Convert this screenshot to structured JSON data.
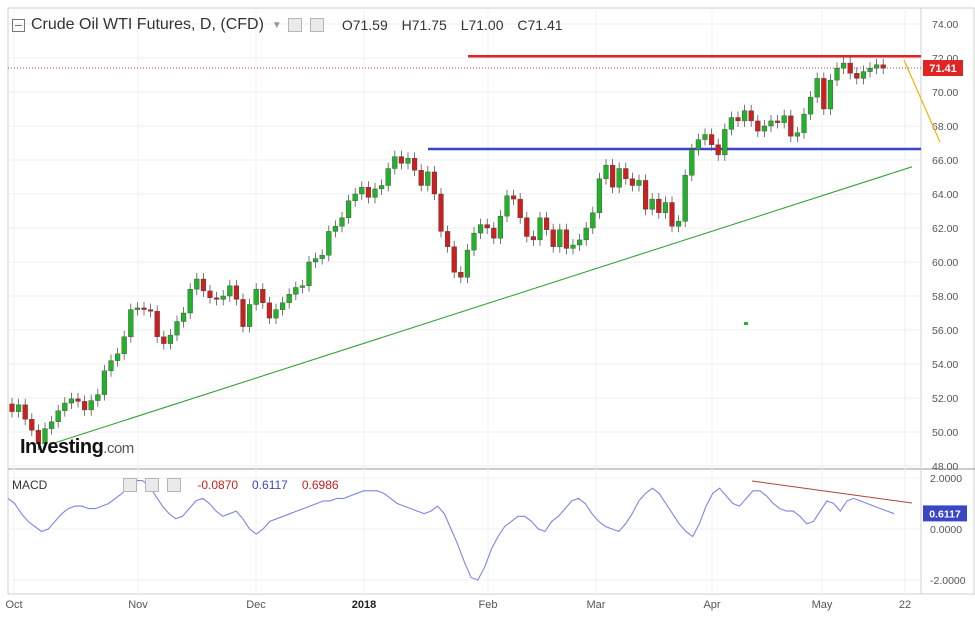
{
  "header": {
    "title": "Crude Oil WTI Futures, D, (CFD)",
    "open": "O71.59",
    "high": "H71.75",
    "low": "L71.00",
    "close": "C71.41"
  },
  "price_badge": "71.41",
  "macd_badge": "0.6117",
  "macd_header": {
    "label": "MACD",
    "v1": "-0.0870",
    "v2": "0.6117",
    "v3": "0.6986"
  },
  "logo": {
    "main": "Investing",
    "suffix": ".com"
  },
  "colors": {
    "up": "#22b22a",
    "down": "#cc1f1f",
    "resistance": "#e02424",
    "support": "#3b46c6",
    "trendline": "#35a33c",
    "macd_line": "#7c86e6",
    "macd_trend": "#b04040",
    "arrow": "#f0b400"
  },
  "chart_data": [
    {
      "type": "candlestick",
      "price_axis": {
        "ticks": [
          "74.00",
          "72.00",
          "70.00",
          "68.00",
          "66.00",
          "64.00",
          "62.00",
          "60.00",
          "58.00",
          "56.00",
          "54.00",
          "52.00",
          "50.00",
          "48.00"
        ],
        "ylim": [
          48,
          74
        ]
      },
      "time_axis": {
        "labels": [
          "Oct",
          "Nov",
          "Dec",
          "2018",
          "Feb",
          "Mar",
          "Apr",
          "May",
          "22"
        ]
      },
      "last_price": 71.41,
      "lines": {
        "resistance": 72.1,
        "support": 66.65
      },
      "candles": [
        [
          0,
          51.65,
          51.2
        ],
        [
          1,
          51.2,
          51.6
        ],
        [
          2,
          51.6,
          50.75
        ],
        [
          3,
          50.75,
          50.1
        ],
        [
          4,
          50.1,
          49.3
        ],
        [
          5,
          49.3,
          50.2
        ],
        [
          6,
          50.2,
          50.6
        ],
        [
          7,
          50.6,
          51.25
        ],
        [
          8,
          51.25,
          51.7
        ],
        [
          9,
          51.7,
          51.95
        ],
        [
          10,
          51.95,
          51.8
        ],
        [
          11,
          51.8,
          51.3
        ],
        [
          12,
          51.3,
          51.85
        ],
        [
          13,
          51.85,
          52.2
        ],
        [
          14,
          52.2,
          53.6
        ],
        [
          15,
          53.6,
          54.2
        ],
        [
          16,
          54.2,
          54.6
        ],
        [
          17,
          54.6,
          55.6
        ],
        [
          18,
          55.6,
          57.2
        ],
        [
          19,
          57.2,
          57.3
        ],
        [
          20,
          57.3,
          57.2
        ],
        [
          21,
          57.2,
          57.1
        ],
        [
          22,
          57.1,
          55.6
        ],
        [
          23,
          55.6,
          55.2
        ],
        [
          24,
          55.2,
          55.7
        ],
        [
          25,
          55.7,
          56.5
        ],
        [
          26,
          56.5,
          57.0
        ],
        [
          27,
          57.0,
          58.4
        ],
        [
          28,
          58.4,
          59.0
        ],
        [
          29,
          59.0,
          58.3
        ],
        [
          30,
          58.3,
          57.9
        ],
        [
          31,
          57.9,
          57.8
        ],
        [
          32,
          57.8,
          58.0
        ],
        [
          33,
          58.0,
          58.6
        ],
        [
          34,
          58.6,
          57.8
        ],
        [
          35,
          57.8,
          56.2
        ],
        [
          36,
          56.2,
          57.5
        ],
        [
          37,
          57.5,
          58.4
        ],
        [
          38,
          58.4,
          57.6
        ],
        [
          39,
          57.6,
          56.7
        ],
        [
          40,
          56.7,
          57.2
        ],
        [
          41,
          57.2,
          57.6
        ],
        [
          42,
          57.6,
          58.1
        ],
        [
          43,
          58.1,
          58.5
        ],
        [
          44,
          58.5,
          58.6
        ],
        [
          45,
          58.6,
          60.0
        ],
        [
          46,
          60.0,
          60.2
        ],
        [
          47,
          60.2,
          60.4
        ],
        [
          48,
          60.4,
          61.8
        ],
        [
          49,
          61.8,
          62.1
        ],
        [
          50,
          62.1,
          62.6
        ],
        [
          51,
          62.6,
          63.6
        ],
        [
          52,
          63.6,
          64.0
        ],
        [
          53,
          64.0,
          64.4
        ],
        [
          54,
          64.4,
          63.8
        ],
        [
          55,
          63.8,
          64.3
        ],
        [
          56,
          64.3,
          64.5
        ],
        [
          57,
          64.5,
          65.5
        ],
        [
          58,
          65.5,
          66.2
        ],
        [
          59,
          66.2,
          65.8
        ],
        [
          60,
          65.8,
          66.1
        ],
        [
          61,
          66.1,
          65.4
        ],
        [
          62,
          65.4,
          64.5
        ],
        [
          63,
          64.5,
          65.3
        ],
        [
          64,
          65.3,
          64.0
        ],
        [
          65,
          64.0,
          61.8
        ],
        [
          66,
          61.8,
          60.9
        ],
        [
          67,
          60.9,
          59.4
        ],
        [
          68,
          59.4,
          59.1
        ],
        [
          69,
          59.1,
          60.7
        ],
        [
          70,
          60.7,
          61.7
        ],
        [
          71,
          61.7,
          62.2
        ],
        [
          72,
          62.2,
          62.0
        ],
        [
          73,
          62.0,
          61.4
        ],
        [
          74,
          61.4,
          62.7
        ],
        [
          75,
          62.7,
          63.9
        ],
        [
          76,
          63.9,
          63.7
        ],
        [
          77,
          63.7,
          62.6
        ],
        [
          78,
          62.6,
          61.5
        ],
        [
          79,
          61.5,
          61.3
        ],
        [
          80,
          61.3,
          62.6
        ],
        [
          81,
          62.6,
          61.9
        ],
        [
          82,
          61.9,
          60.9
        ],
        [
          83,
          60.9,
          61.9
        ],
        [
          84,
          61.9,
          60.8
        ],
        [
          85,
          60.8,
          61.0
        ],
        [
          86,
          61.0,
          61.3
        ],
        [
          87,
          61.3,
          62.0
        ],
        [
          88,
          62.0,
          62.9
        ],
        [
          89,
          62.9,
          64.9
        ],
        [
          90,
          64.9,
          65.7
        ],
        [
          91,
          65.7,
          64.4
        ],
        [
          92,
          64.4,
          65.5
        ],
        [
          93,
          65.5,
          64.9
        ],
        [
          94,
          64.9,
          64.5
        ],
        [
          95,
          64.5,
          64.8
        ],
        [
          96,
          64.8,
          63.1
        ],
        [
          97,
          63.1,
          63.7
        ],
        [
          98,
          63.7,
          62.9
        ],
        [
          99,
          62.9,
          63.5
        ],
        [
          100,
          63.5,
          62.1
        ],
        [
          101,
          62.1,
          62.4
        ],
        [
          102,
          62.4,
          65.1
        ],
        [
          103,
          65.1,
          66.6
        ],
        [
          104,
          66.6,
          67.2
        ],
        [
          105,
          67.2,
          67.5
        ],
        [
          106,
          67.5,
          66.9
        ],
        [
          107,
          66.9,
          66.3
        ],
        [
          108,
          66.3,
          67.8
        ],
        [
          109,
          67.8,
          68.5
        ],
        [
          110,
          68.5,
          68.3
        ],
        [
          111,
          68.3,
          68.9
        ],
        [
          112,
          68.9,
          68.3
        ],
        [
          113,
          68.3,
          67.7
        ],
        [
          114,
          67.7,
          68.0
        ],
        [
          115,
          68.0,
          68.3
        ],
        [
          116,
          68.3,
          68.2
        ],
        [
          117,
          68.2,
          68.6
        ],
        [
          118,
          68.6,
          67.4
        ],
        [
          119,
          67.4,
          67.6
        ],
        [
          120,
          67.6,
          68.7
        ],
        [
          121,
          68.7,
          69.7
        ],
        [
          122,
          69.7,
          70.8
        ],
        [
          123,
          70.8,
          69.0
        ],
        [
          124,
          69.0,
          70.7
        ],
        [
          125,
          70.7,
          71.4
        ],
        [
          126,
          71.4,
          71.7
        ],
        [
          127,
          71.7,
          71.1
        ],
        [
          128,
          71.1,
          70.8
        ],
        [
          129,
          70.8,
          71.2
        ],
        [
          130,
          71.2,
          71.4
        ],
        [
          131,
          71.4,
          71.6
        ],
        [
          132,
          71.6,
          71.4
        ]
      ]
    },
    {
      "type": "line",
      "name": "MACD",
      "y_axis": {
        "ticks": [
          "2.0000",
          "0.0000",
          "-2.0000"
        ],
        "ylim": [
          -2.4,
          2.2
        ]
      },
      "values": [
        1.2,
        1.0,
        0.6,
        0.3,
        0.1,
        -0.1,
        0.0,
        0.3,
        0.6,
        0.8,
        0.9,
        0.9,
        0.8,
        0.8,
        0.9,
        1.0,
        1.2,
        1.4,
        1.7,
        1.9,
        1.9,
        1.7,
        1.3,
        0.9,
        0.6,
        0.4,
        0.5,
        0.8,
        1.1,
        1.2,
        1.0,
        0.7,
        0.5,
        0.6,
        0.7,
        0.4,
        0.0,
        -0.2,
        0.0,
        0.3,
        0.4,
        0.5,
        0.6,
        0.7,
        0.8,
        0.9,
        1.0,
        1.1,
        1.1,
        1.2,
        1.2,
        1.3,
        1.4,
        1.5,
        1.5,
        1.5,
        1.4,
        1.2,
        1.0,
        0.9,
        0.8,
        0.7,
        0.6,
        0.7,
        0.9,
        0.6,
        0.0,
        -0.6,
        -1.3,
        -1.9,
        -2.0,
        -1.5,
        -0.8,
        -0.3,
        0.1,
        0.3,
        0.5,
        0.5,
        0.3,
        0.0,
        -0.1,
        0.3,
        0.5,
        0.8,
        1.1,
        1.2,
        1.0,
        0.6,
        0.3,
        0.1,
        0.0,
        -0.1,
        0.2,
        0.6,
        1.1,
        1.4,
        1.6,
        1.4,
        1.0,
        0.6,
        0.2,
        -0.1,
        -0.3,
        0.2,
        0.9,
        1.4,
        1.6,
        1.3,
        1.0,
        0.9,
        1.2,
        1.5,
        1.5,
        1.3,
        1.0,
        0.8,
        0.7,
        0.7,
        0.5,
        0.2,
        0.3,
        0.7,
        1.1,
        1.0,
        0.7,
        1.1,
        1.2,
        1.1,
        1.0,
        0.9,
        0.8,
        0.7,
        0.6
      ]
    }
  ]
}
